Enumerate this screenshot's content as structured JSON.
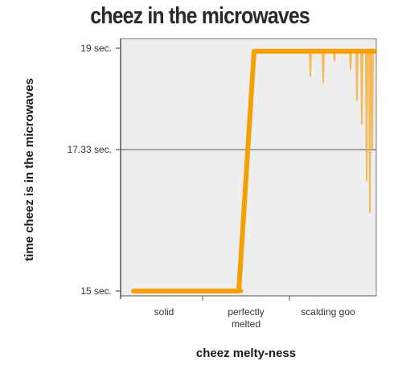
{
  "chart_data": {
    "type": "line",
    "title": "cheez in the microwaves",
    "xlabel": "cheez melty-ness",
    "ylabel": "time cheez is in the microwaves",
    "categories": [
      "solid",
      "perfectly melted",
      "scalding goo"
    ],
    "category_lines": [
      "solid",
      [
        "perfectly",
        "melted"
      ],
      "scalding goo"
    ],
    "y_ticks": [
      {
        "label": "15 sec.",
        "value": 15
      },
      {
        "label": "17.33 sec.",
        "value": 17.33
      },
      {
        "label": "19 sec.",
        "value": 19
      }
    ],
    "ylim": [
      15,
      19
    ],
    "series": [
      {
        "color": "#f6a000",
        "points": [
          {
            "x": "solid",
            "y": 15.0
          },
          {
            "x": "perfectly melted",
            "y": 15.0
          },
          {
            "x": "perfectly melted",
            "y": 18.95
          },
          {
            "x": "scalding goo",
            "y": 18.95
          }
        ]
      }
    ],
    "grid": {
      "horizontal": true,
      "vertical": false
    },
    "colors": {
      "background": "#eeeeee",
      "line": "#f6a000",
      "axis": "#555555"
    }
  }
}
